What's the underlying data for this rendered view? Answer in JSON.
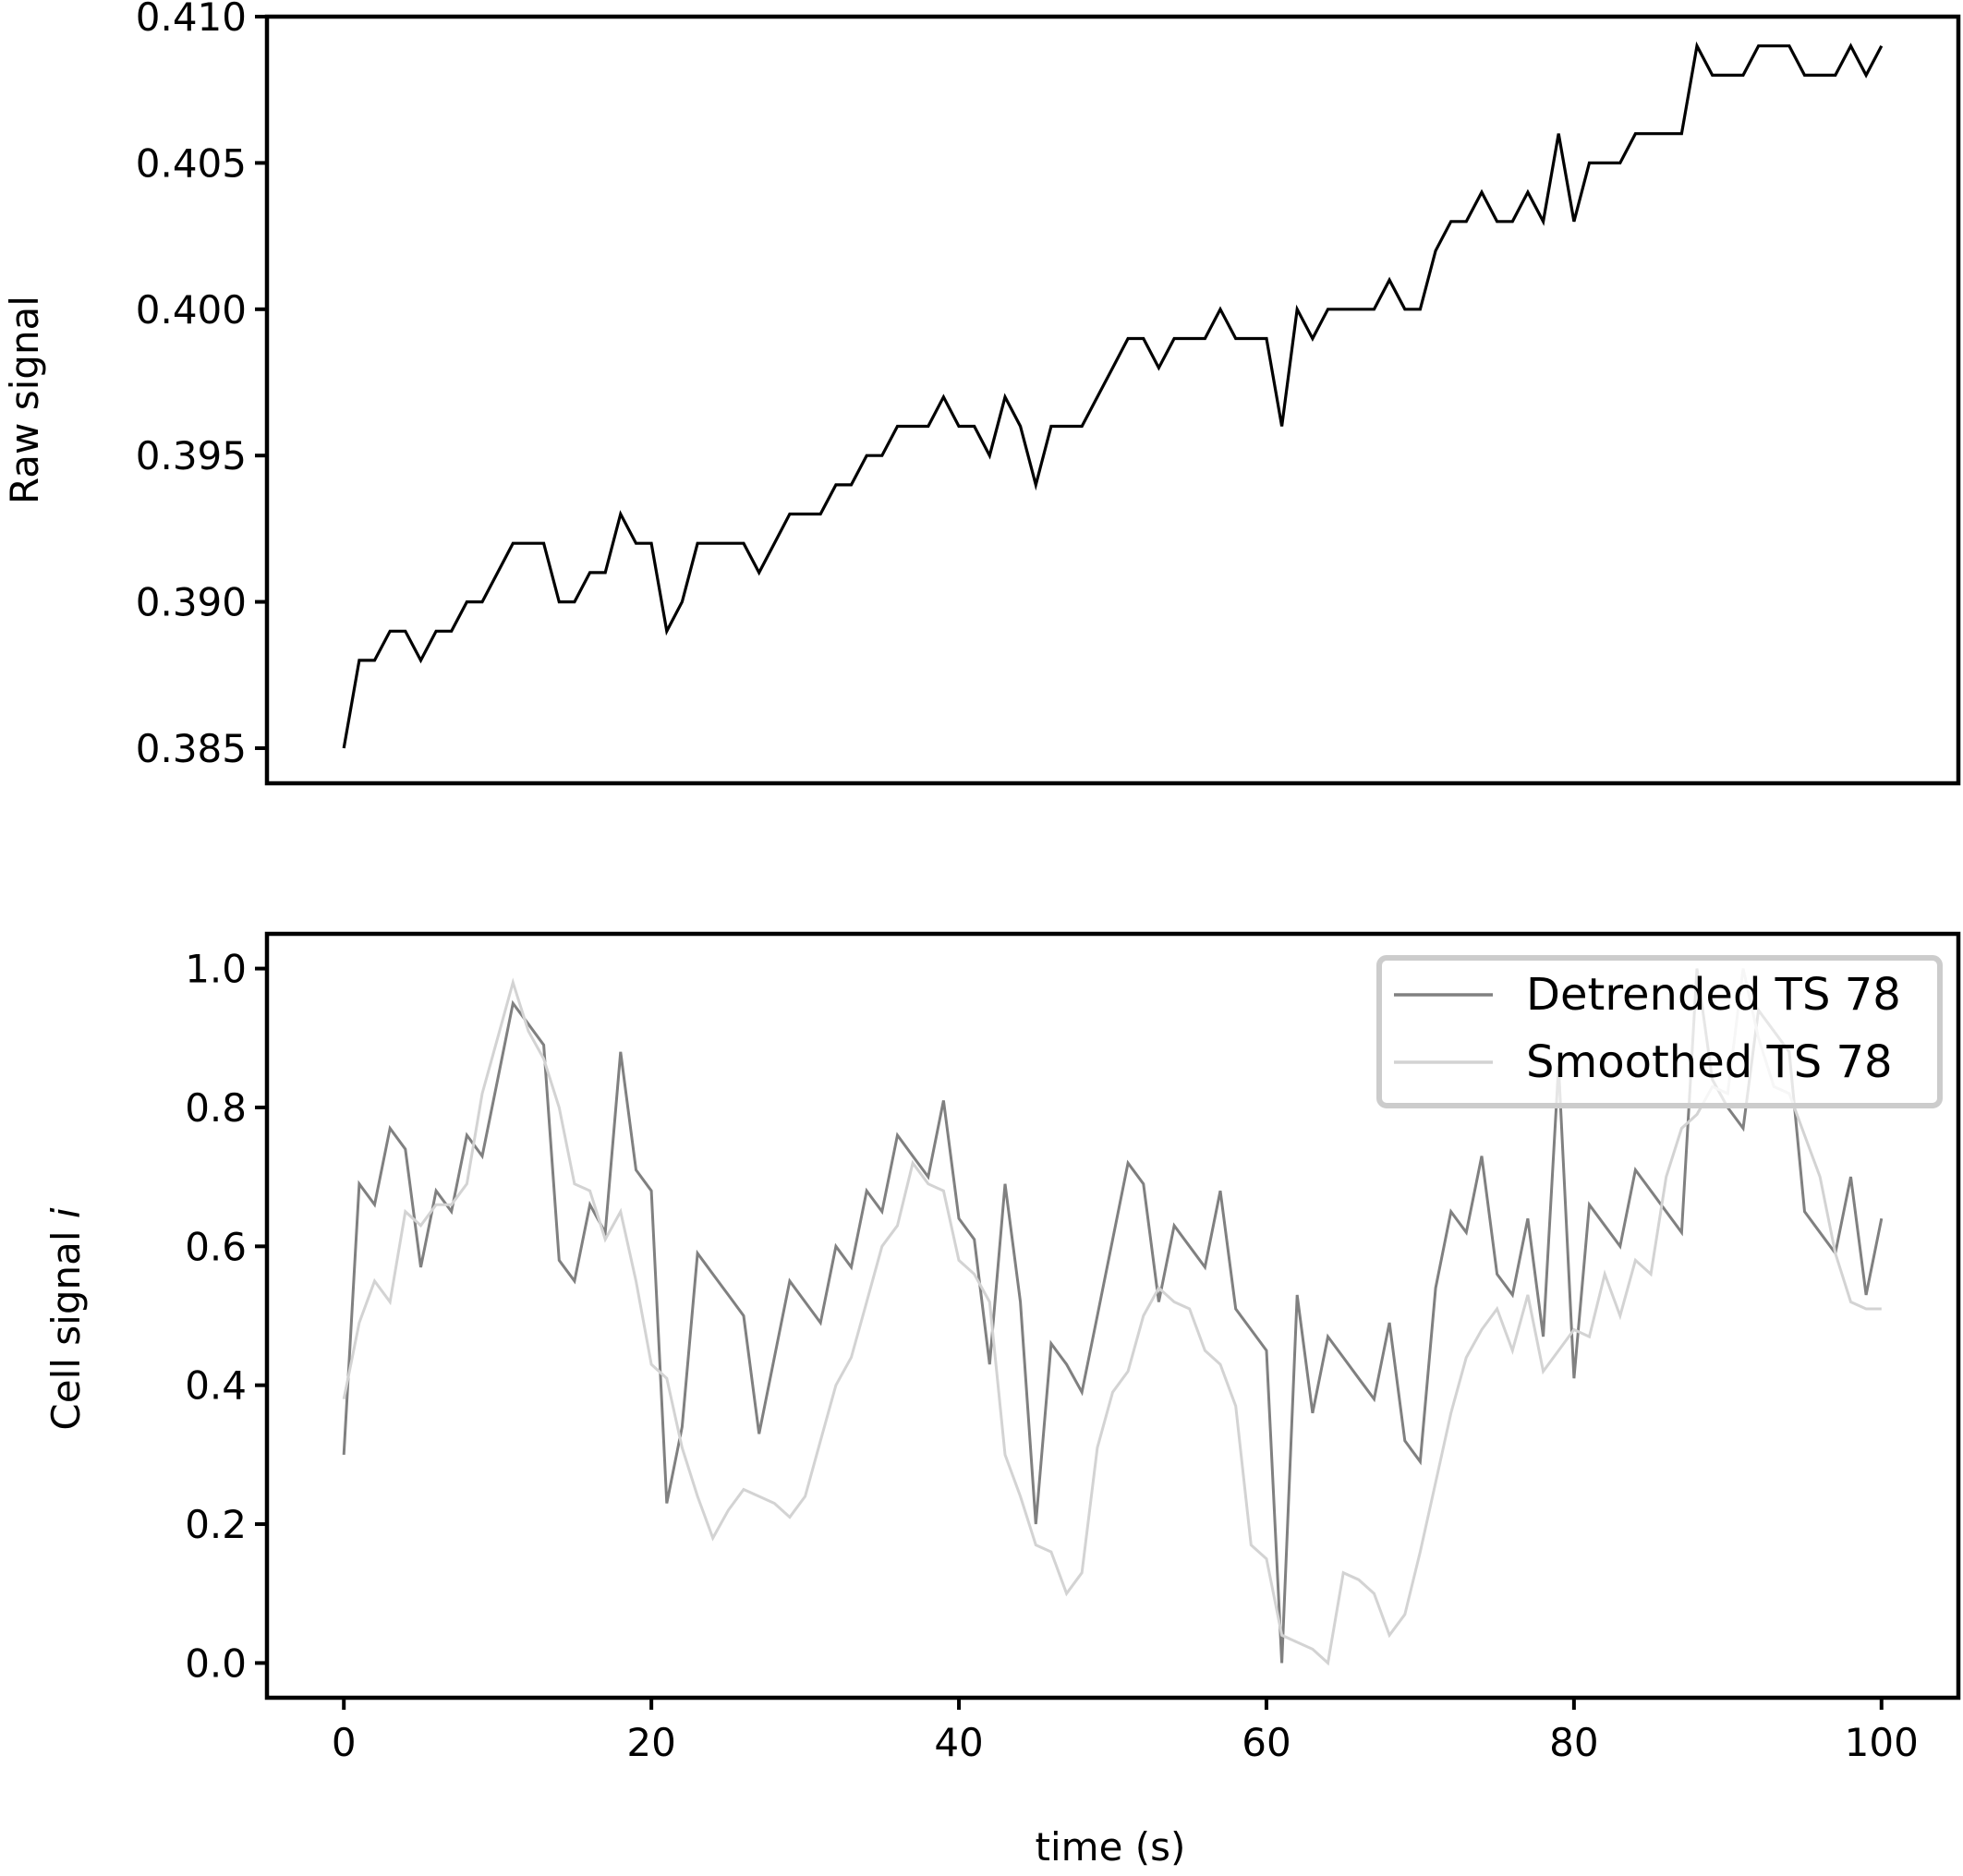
{
  "chart_data": [
    {
      "type": "line",
      "ylabel": "Raw signal",
      "xlabel": "",
      "xlim": [
        -5,
        105
      ],
      "ylim": [
        0.3838,
        0.41
      ],
      "yticks": [
        0.385,
        0.39,
        0.395,
        0.4,
        0.405,
        0.41
      ],
      "ytick_labels": [
        "0.385",
        "0.390",
        "0.395",
        "0.400",
        "0.405",
        "0.410"
      ],
      "show_xticklabels": false,
      "grid": false,
      "series": [
        {
          "color": "#000000",
          "x": [
            0,
            1,
            2,
            3,
            4,
            5,
            6,
            7,
            8,
            9,
            10,
            11,
            12,
            13,
            14,
            15,
            16,
            17,
            18,
            19,
            20,
            21,
            22,
            23,
            24,
            25,
            26,
            27,
            28,
            29,
            30,
            31,
            32,
            33,
            34,
            35,
            36,
            37,
            38,
            39,
            40,
            41,
            42,
            43,
            44,
            45,
            46,
            47,
            48,
            49,
            50,
            51,
            52,
            53,
            54,
            55,
            56,
            57,
            58,
            59,
            60,
            61,
            62,
            63,
            64,
            65,
            66,
            67,
            68,
            69,
            70,
            71,
            72,
            73,
            74,
            75,
            76,
            77,
            78,
            79,
            80,
            81,
            82,
            83,
            84,
            85,
            86,
            87,
            88,
            89,
            90,
            91,
            92,
            93,
            94,
            95,
            96,
            97,
            98,
            99,
            100
          ],
          "values": [
            0.385,
            0.388,
            0.388,
            0.389,
            0.389,
            0.388,
            0.389,
            0.389,
            0.39,
            0.39,
            0.391,
            0.392,
            0.392,
            0.392,
            0.39,
            0.39,
            0.391,
            0.391,
            0.393,
            0.392,
            0.392,
            0.389,
            0.39,
            0.392,
            0.392,
            0.392,
            0.392,
            0.391,
            0.392,
            0.393,
            0.393,
            0.393,
            0.394,
            0.394,
            0.395,
            0.395,
            0.396,
            0.396,
            0.396,
            0.397,
            0.396,
            0.396,
            0.395,
            0.397,
            0.396,
            0.394,
            0.396,
            0.396,
            0.396,
            0.397,
            0.398,
            0.399,
            0.399,
            0.398,
            0.399,
            0.399,
            0.399,
            0.4,
            0.399,
            0.399,
            0.399,
            0.396,
            0.4,
            0.399,
            0.4,
            0.4,
            0.4,
            0.4,
            0.401,
            0.4,
            0.4,
            0.402,
            0.403,
            0.403,
            0.404,
            0.403,
            0.403,
            0.404,
            0.403,
            0.406,
            0.403,
            0.405,
            0.405,
            0.405,
            0.406,
            0.406,
            0.406,
            0.406,
            0.409,
            0.408,
            0.408,
            0.408,
            0.409,
            0.409,
            0.409,
            0.408,
            0.408,
            0.408,
            0.409,
            0.408,
            0.409
          ]
        }
      ]
    },
    {
      "type": "line",
      "ylabel": "Cell signal ",
      "ylabel_italic": "i",
      "xlabel": "time (s)",
      "xlim": [
        -5,
        105
      ],
      "ylim": [
        -0.05,
        1.05
      ],
      "xticks": [
        0,
        20,
        40,
        60,
        80,
        100
      ],
      "xtick_labels": [
        "0",
        "20",
        "40",
        "60",
        "80",
        "100"
      ],
      "yticks": [
        0.0,
        0.2,
        0.4,
        0.6,
        0.8,
        1.0
      ],
      "ytick_labels": [
        "0.0",
        "0.2",
        "0.4",
        "0.6",
        "0.8",
        "1.0"
      ],
      "grid": false,
      "legend_position": "top-right",
      "series": [
        {
          "name": "Detrended TS 78",
          "color": "#808080",
          "x": [
            0,
            1,
            2,
            3,
            4,
            5,
            6,
            7,
            8,
            9,
            10,
            11,
            12,
            13,
            14,
            15,
            16,
            17,
            18,
            19,
            20,
            21,
            22,
            23,
            24,
            25,
            26,
            27,
            28,
            29,
            30,
            31,
            32,
            33,
            34,
            35,
            36,
            37,
            38,
            39,
            40,
            41,
            42,
            43,
            44,
            45,
            46,
            47,
            48,
            49,
            50,
            51,
            52,
            53,
            54,
            55,
            56,
            57,
            58,
            59,
            60,
            61,
            62,
            63,
            64,
            65,
            66,
            67,
            68,
            69,
            70,
            71,
            72,
            73,
            74,
            75,
            76,
            77,
            78,
            79,
            80,
            81,
            82,
            83,
            84,
            85,
            86,
            87,
            88,
            89,
            90,
            91,
            92,
            93,
            94,
            95,
            96,
            97,
            98,
            99,
            100
          ],
          "values": [
            0.3,
            0.69,
            0.66,
            0.77,
            0.74,
            0.57,
            0.68,
            0.65,
            0.76,
            0.73,
            0.84,
            0.95,
            0.92,
            0.89,
            0.58,
            0.55,
            0.66,
            0.62,
            0.88,
            0.71,
            0.68,
            0.23,
            0.34,
            0.59,
            0.56,
            0.53,
            0.5,
            0.33,
            0.44,
            0.55,
            0.52,
            0.49,
            0.6,
            0.57,
            0.68,
            0.65,
            0.76,
            0.73,
            0.7,
            0.81,
            0.64,
            0.61,
            0.43,
            0.69,
            0.52,
            0.2,
            0.46,
            0.43,
            0.39,
            0.5,
            0.61,
            0.72,
            0.69,
            0.52,
            0.63,
            0.6,
            0.57,
            0.68,
            0.51,
            0.48,
            0.45,
            0.0,
            0.53,
            0.36,
            0.47,
            0.44,
            0.41,
            0.38,
            0.49,
            0.32,
            0.29,
            0.54,
            0.65,
            0.62,
            0.73,
            0.56,
            0.53,
            0.64,
            0.47,
            0.86,
            0.41,
            0.66,
            0.63,
            0.6,
            0.71,
            0.68,
            0.65,
            0.62,
            1.0,
            0.84,
            0.8,
            0.77,
            0.94,
            0.91,
            0.88,
            0.65,
            0.62,
            0.59,
            0.7,
            0.53,
            0.64
          ]
        },
        {
          "name": "Smoothed TS 78",
          "color": "#d3d3d3",
          "x": [
            0,
            1,
            2,
            3,
            4,
            5,
            6,
            7,
            8,
            9,
            10,
            11,
            12,
            13,
            14,
            15,
            16,
            17,
            18,
            19,
            20,
            21,
            22,
            23,
            24,
            25,
            26,
            27,
            28,
            29,
            30,
            31,
            32,
            33,
            34,
            35,
            36,
            37,
            38,
            39,
            40,
            41,
            42,
            43,
            44,
            45,
            46,
            47,
            48,
            49,
            50,
            51,
            52,
            53,
            54,
            55,
            56,
            57,
            58,
            59,
            60,
            61,
            62,
            63,
            64,
            65,
            66,
            67,
            68,
            69,
            70,
            71,
            72,
            73,
            74,
            75,
            76,
            77,
            78,
            79,
            80,
            81,
            82,
            83,
            84,
            85,
            86,
            87,
            88,
            89,
            90,
            91,
            92,
            93,
            94,
            95,
            96,
            97,
            98,
            99,
            100
          ],
          "values": [
            0.38,
            0.49,
            0.55,
            0.52,
            0.65,
            0.63,
            0.66,
            0.66,
            0.69,
            0.82,
            0.9,
            0.98,
            0.91,
            0.87,
            0.8,
            0.69,
            0.68,
            0.61,
            0.65,
            0.55,
            0.43,
            0.41,
            0.31,
            0.24,
            0.18,
            0.22,
            0.25,
            0.24,
            0.23,
            0.21,
            0.24,
            0.32,
            0.4,
            0.44,
            0.52,
            0.6,
            0.63,
            0.72,
            0.69,
            0.68,
            0.58,
            0.56,
            0.52,
            0.3,
            0.24,
            0.17,
            0.16,
            0.1,
            0.13,
            0.31,
            0.39,
            0.42,
            0.5,
            0.54,
            0.52,
            0.51,
            0.45,
            0.43,
            0.37,
            0.17,
            0.15,
            0.04,
            0.03,
            0.02,
            0.0,
            0.13,
            0.12,
            0.1,
            0.04,
            0.07,
            0.16,
            0.26,
            0.36,
            0.44,
            0.48,
            0.51,
            0.45,
            0.53,
            0.42,
            0.45,
            0.48,
            0.47,
            0.56,
            0.5,
            0.58,
            0.56,
            0.7,
            0.77,
            0.79,
            0.83,
            0.82,
            1.0,
            0.9,
            0.83,
            0.82,
            0.76,
            0.7,
            0.59,
            0.52,
            0.51,
            0.51
          ]
        }
      ]
    }
  ]
}
